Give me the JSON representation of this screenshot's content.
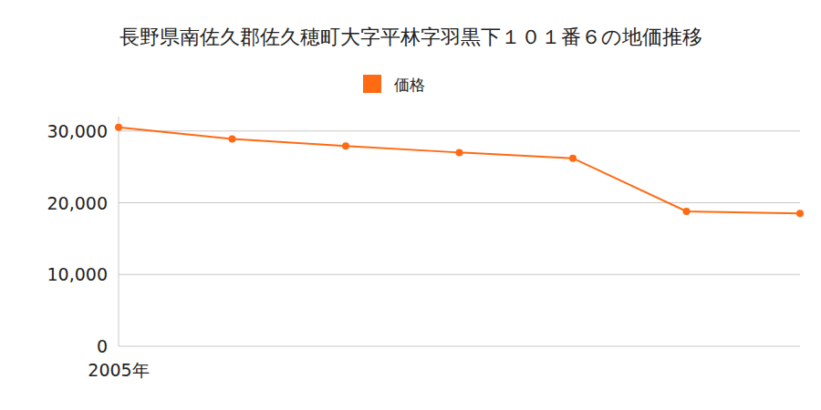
{
  "chart_data": {
    "type": "line",
    "title": "長野県南佐久郡佐久穂町大字平林字羽黒下１０１番６の地価推移",
    "categories": [
      "2005年",
      null,
      null,
      null,
      null,
      null,
      null
    ],
    "series": [
      {
        "name": "価格",
        "color": "#ff6a13",
        "marker": "circle",
        "values": [
          30500,
          28900,
          27900,
          27000,
          26200,
          18800,
          18500
        ]
      }
    ],
    "ylim": [
      0,
      32000
    ],
    "yticks": [
      0,
      {
        "value": 10000,
        "label": "10,000"
      },
      {
        "value": 20000,
        "label": "20,000"
      },
      {
        "value": 30000,
        "label": "30,000"
      }
    ],
    "grid": true,
    "legend": "top"
  }
}
